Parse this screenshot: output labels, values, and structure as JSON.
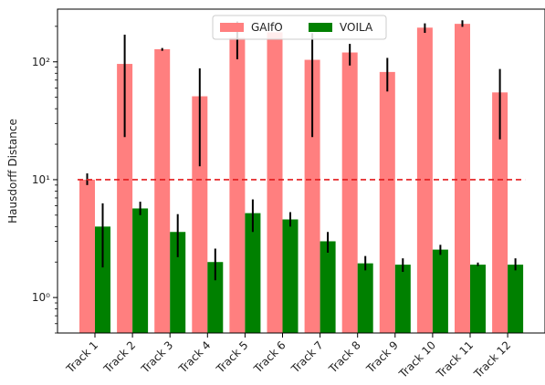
{
  "chart_data": {
    "type": "bar",
    "categories": [
      "Track 1",
      "Track 2",
      "Track 3",
      "Track 4",
      "Track 5",
      "Track 6",
      "Track 7",
      "Track 8",
      "Track 9",
      "Track 10",
      "Track 11",
      "Track 12"
    ],
    "ylabel": "Hausdorff Distance",
    "yscale": "log",
    "ylim": [
      0.5,
      280
    ],
    "yticks": [
      {
        "value": 1,
        "label": "10⁰"
      },
      {
        "value": 10,
        "label": "10¹"
      },
      {
        "value": 100,
        "label": "10²"
      }
    ],
    "legend_position": "top-center",
    "series": [
      {
        "name": "GAIfO",
        "color": "#ff7f7f",
        "values": [
          10,
          96,
          128,
          51,
          160,
          178,
          104,
          120,
          82,
          195,
          210,
          55
        ],
        "error_low": [
          9.0,
          23,
          124,
          13,
          105,
          178,
          23,
          93,
          56,
          176,
          198,
          22
        ],
        "error_high": [
          11.3,
          170,
          131,
          88,
          220,
          178,
          175,
          142,
          108,
          212,
          225,
          87
        ]
      },
      {
        "name": "VOILA",
        "color": "#008000",
        "values": [
          4.0,
          5.7,
          3.6,
          2.0,
          5.2,
          4.6,
          3.0,
          1.95,
          1.9,
          2.55,
          1.9,
          1.9
        ],
        "error_low": [
          1.8,
          5.0,
          2.2,
          1.4,
          3.6,
          4.0,
          2.4,
          1.7,
          1.65,
          2.3,
          1.85,
          1.7
        ],
        "error_high": [
          6.3,
          6.5,
          5.1,
          2.6,
          6.8,
          5.3,
          3.6,
          2.25,
          2.15,
          2.8,
          1.98,
          2.15
        ]
      }
    ],
    "reference_line": {
      "value": 10,
      "color": "#e31a1c",
      "style": "dashed"
    },
    "grid": false
  }
}
